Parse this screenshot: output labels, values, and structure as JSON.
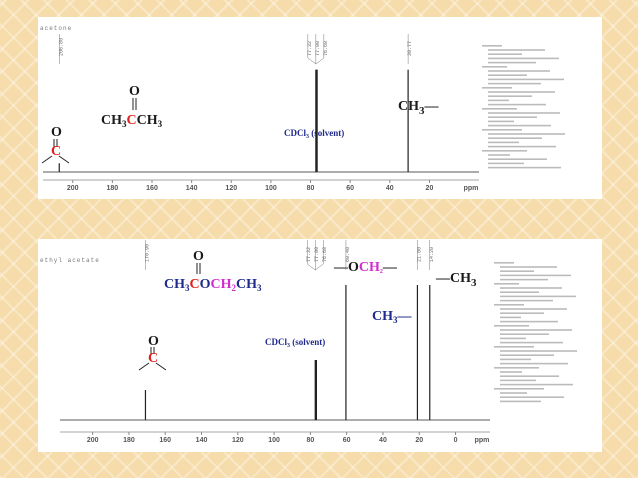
{
  "chart_data": [
    {
      "type": "spectrum",
      "name": "acetone",
      "structure": {
        "oxygen": "O",
        "formula": [
          "CH",
          "3",
          "C",
          "CH",
          "3"
        ]
      },
      "carbonyl": {
        "oxygen": "O",
        "carbon": "C"
      },
      "solvent": [
        "CDCl",
        "3",
        " (solvent)"
      ],
      "group": [
        "CH",
        "3",
        "—"
      ],
      "x": [
        206.8,
        77.32,
        77.0,
        76.68,
        30.77
      ],
      "x_labels": [
        "206.80",
        "77.32",
        "77.00",
        "76.68",
        "30.77"
      ],
      "values": [
        8,
        93,
        93,
        93,
        93
      ],
      "xlim": [
        215,
        -5
      ],
      "xticks": [
        200,
        180,
        160,
        140,
        120,
        100,
        80,
        60,
        40,
        20
      ],
      "x_unit": "ppm",
      "ylim": [
        0,
        100
      ],
      "color": "#222222"
    },
    {
      "type": "spectrum",
      "name": "ethyl acetate",
      "structure": {
        "oxygen": "O",
        "formula": [
          "CH",
          "3",
          "C",
          "O",
          "CH",
          "2",
          "CH",
          "3"
        ]
      },
      "carbonyl": {
        "oxygen": "O",
        "carbon": "C"
      },
      "solvent": [
        "CDCl",
        "3",
        " (solvent)"
      ],
      "groups": [
        [
          "—O",
          "CH",
          "2",
          "—"
        ],
        [
          "—CH",
          "3"
        ],
        [
          "CH",
          "3",
          "—"
        ]
      ],
      "x": [
        170.9,
        77.32,
        77.0,
        76.68,
        60.4,
        21.0,
        14.2
      ],
      "x_labels": [
        "170.90",
        "77.32",
        "77.00",
        "76.68",
        "60.40",
        "21.00",
        "14.20"
      ],
      "values": [
        20,
        40,
        40,
        40,
        90,
        90,
        90
      ],
      "xlim": [
        218,
        -19
      ],
      "xticks": [
        200,
        180,
        160,
        140,
        120,
        100,
        80,
        60,
        40,
        20,
        0
      ],
      "x_unit": "ppm",
      "ylim": [
        0,
        100
      ],
      "color": "#222222"
    }
  ]
}
